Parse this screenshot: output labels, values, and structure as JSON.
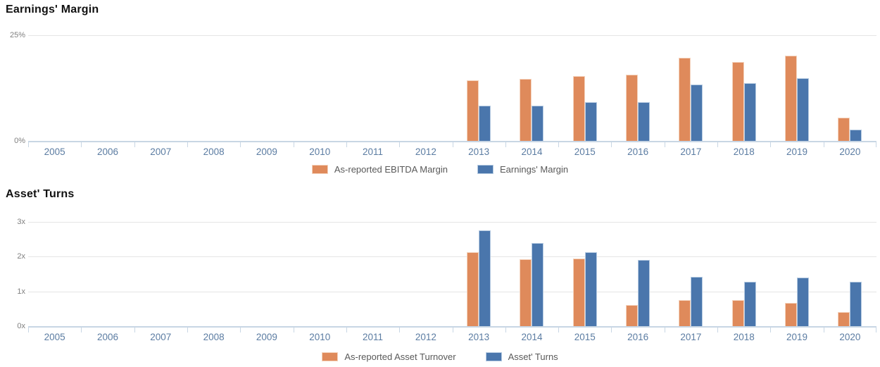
{
  "colors": {
    "orange": "#DF8A5B",
    "orange_border": "#F4D3BD",
    "blue": "#4A76AC",
    "blue_border": "#B6CBE2",
    "gridline": "#E5E5E5",
    "axis": "#C8D6E4",
    "x_label_text": "#5B7CA2",
    "y_label_text": "#7F7F7F",
    "legend_text": "#595959",
    "title_text": "#111111"
  },
  "chart_data": [
    {
      "type": "bar",
      "title": "Earnings' Margin",
      "categories": [
        "2005",
        "2006",
        "2007",
        "2008",
        "2009",
        "2010",
        "2011",
        "2012",
        "2013",
        "2014",
        "2015",
        "2016",
        "2017",
        "2018",
        "2019",
        "2020"
      ],
      "series": [
        {
          "name": "As-reported EBITDA Margin",
          "color_key": "orange",
          "values": [
            null,
            null,
            null,
            null,
            null,
            null,
            null,
            null,
            14.3,
            14.6,
            15.3,
            15.6,
            19.6,
            18.6,
            20.1,
            5.5
          ]
        },
        {
          "name": "Earnings' Margin",
          "color_key": "blue",
          "values": [
            null,
            null,
            null,
            null,
            null,
            null,
            null,
            null,
            8.4,
            8.4,
            9.2,
            9.2,
            13.3,
            13.7,
            14.8,
            2.7
          ]
        }
      ],
      "unit": "%",
      "ylim": [
        0,
        25
      ],
      "y_ticks": [
        {
          "value": 25,
          "label": "25%"
        },
        {
          "value": 0,
          "label": "0%"
        }
      ],
      "grid": true,
      "legend_position": "bottom-center"
    },
    {
      "type": "bar",
      "title": "Asset' Turns",
      "categories": [
        "2005",
        "2006",
        "2007",
        "2008",
        "2009",
        "2010",
        "2011",
        "2012",
        "2013",
        "2014",
        "2015",
        "2016",
        "2017",
        "2018",
        "2019",
        "2020"
      ],
      "series": [
        {
          "name": "As-reported Asset Turnover",
          "color_key": "orange",
          "values": [
            null,
            null,
            null,
            null,
            null,
            null,
            null,
            null,
            2.12,
            1.93,
            1.95,
            0.6,
            0.76,
            0.76,
            0.66,
            0.4
          ]
        },
        {
          "name": "Asset' Turns",
          "color_key": "blue",
          "values": [
            null,
            null,
            null,
            null,
            null,
            null,
            null,
            null,
            2.75,
            2.4,
            2.12,
            1.9,
            1.42,
            1.28,
            1.4,
            1.28
          ]
        }
      ],
      "unit": "x",
      "ylim": [
        0,
        3
      ],
      "y_ticks": [
        {
          "value": 3,
          "label": "3x"
        },
        {
          "value": 2,
          "label": "2x"
        },
        {
          "value": 1,
          "label": "1x"
        },
        {
          "value": 0,
          "label": "0x"
        }
      ],
      "grid": true,
      "legend_position": "bottom-center"
    }
  ]
}
